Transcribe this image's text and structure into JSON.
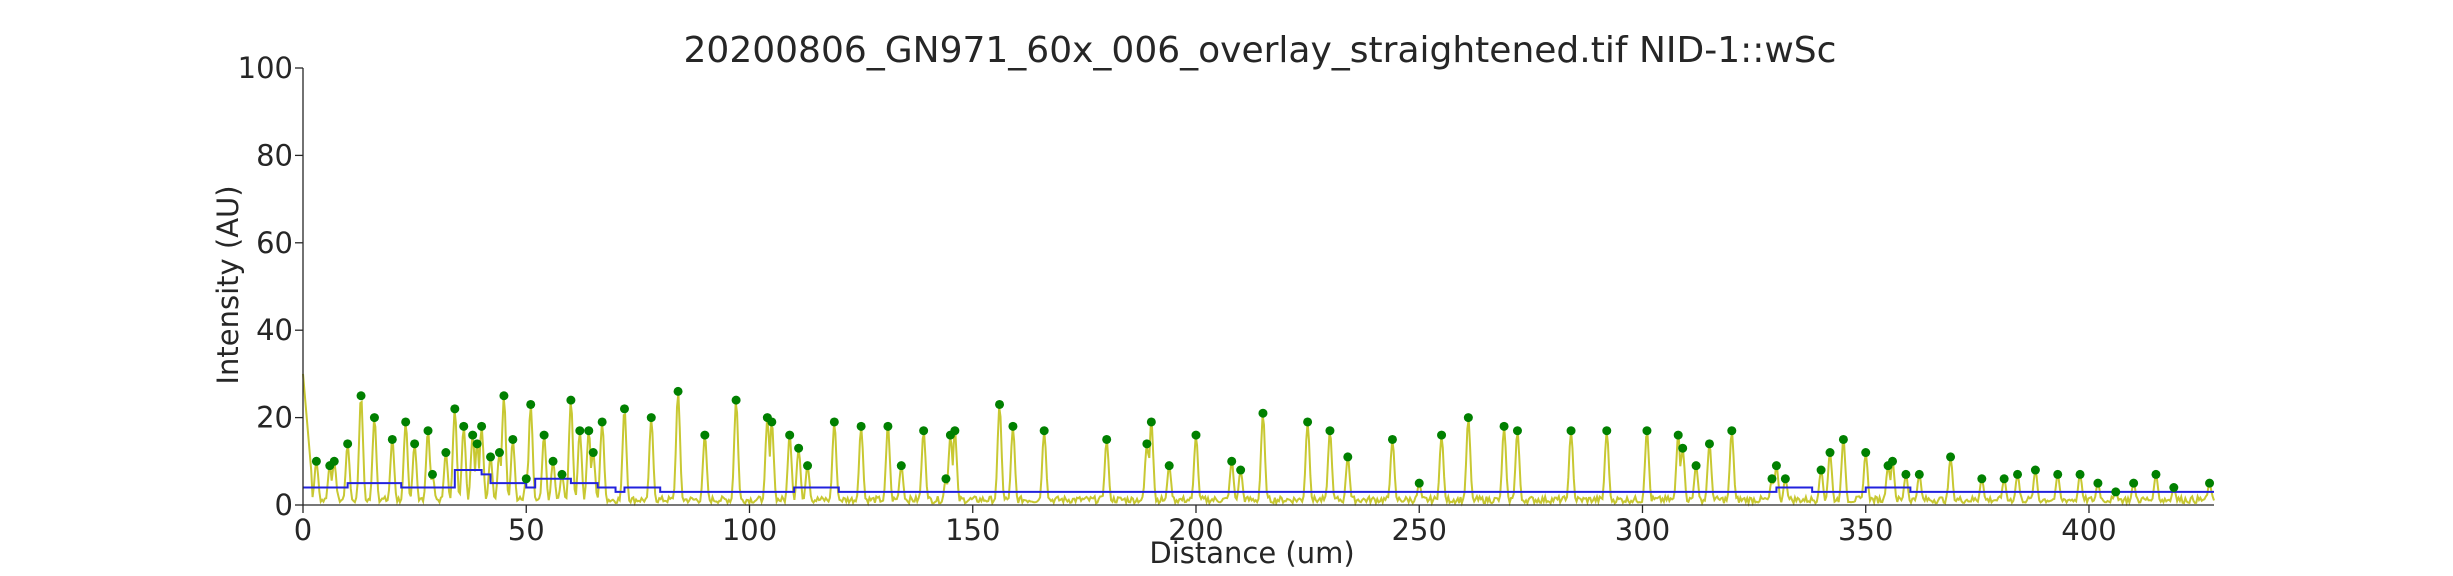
{
  "chart_data": {
    "type": "line",
    "title": "20200806_GN971_60x_006_overlay_straightened.tif NID-1::wSc",
    "xlabel": "Distance (um)",
    "ylabel": "Intensity (AU)",
    "xlim": [
      0,
      428
    ],
    "ylim": [
      0,
      100
    ],
    "xticks": [
      0,
      50,
      100,
      150,
      200,
      250,
      300,
      350,
      400
    ],
    "yticks": [
      0,
      20,
      40,
      60,
      80,
      100
    ],
    "grid": false,
    "colors": {
      "intensity": "#c8c832",
      "background": "#2222dd",
      "peaks": "#008000"
    },
    "series": [
      {
        "type": "line",
        "peak_widths": [
          4,
          2,
          2,
          2,
          3,
          3,
          3,
          3,
          3,
          3,
          3,
          3,
          3,
          3,
          3,
          3,
          3,
          3,
          3,
          3,
          3,
          3,
          3,
          3,
          3,
          3,
          3,
          3,
          3,
          3,
          3,
          3,
          3,
          3,
          3,
          3,
          3,
          3,
          3,
          3,
          3,
          3,
          3,
          3,
          3,
          3,
          3,
          3,
          3,
          3,
          3,
          3,
          3,
          3,
          3,
          3,
          3,
          3,
          3,
          3,
          3,
          3,
          3,
          3,
          3,
          3,
          3,
          3,
          3,
          3,
          3,
          3,
          3,
          3,
          3,
          3,
          3,
          3,
          3,
          3,
          3,
          3,
          3,
          3,
          3,
          3,
          3,
          3,
          3,
          3,
          3,
          3,
          3,
          3,
          3,
          3,
          3,
          3,
          3,
          3,
          3,
          3,
          3,
          3
        ]
      },
      {
        "type": "step",
        "x": [
          0,
          8,
          10,
          22,
          30,
          34,
          38,
          40,
          42,
          50,
          52,
          56,
          60,
          66,
          70,
          72,
          80,
          90,
          100,
          110,
          120,
          140,
          150,
          160,
          170,
          180,
          200,
          220,
          232,
          236,
          250,
          260,
          280,
          300,
          320,
          330,
          334,
          338,
          344,
          350,
          360,
          380,
          400,
          428
        ],
        "y": [
          4,
          4,
          5,
          4,
          4,
          8,
          8,
          7,
          5,
          4,
          6,
          6,
          5,
          4,
          3,
          4,
          3,
          3,
          3,
          4,
          3,
          3,
          3,
          3,
          3,
          3,
          3,
          3,
          3,
          3,
          3,
          3,
          3,
          3,
          3,
          4,
          4,
          3,
          3,
          4,
          3,
          3,
          3,
          3
        ]
      },
      {
        "type": "scatter",
        "x": [
          3,
          6,
          7,
          10,
          13,
          16,
          20,
          23,
          25,
          28,
          29,
          32,
          34,
          36,
          38,
          39,
          40,
          42,
          44,
          45,
          47,
          50,
          51,
          54,
          56,
          58,
          60,
          62,
          64,
          65,
          67,
          72,
          78,
          84,
          90,
          97,
          104,
          105,
          109,
          111,
          113,
          119,
          125,
          131,
          134,
          139,
          144,
          145,
          146,
          156,
          159,
          166,
          180,
          189,
          190,
          194,
          200,
          208,
          210,
          215,
          225,
          230,
          234,
          244,
          250,
          255,
          261,
          269,
          272,
          284,
          292,
          301,
          308,
          309,
          312,
          315,
          320,
          329,
          330,
          332,
          340,
          342,
          345,
          350,
          355,
          356,
          359,
          362,
          369,
          376,
          381,
          384,
          388,
          393,
          398,
          402,
          406,
          410,
          415,
          419,
          427
        ],
        "y": [
          10,
          9,
          10,
          14,
          25,
          20,
          15,
          19,
          14,
          17,
          7,
          12,
          22,
          18,
          16,
          14,
          18,
          11,
          12,
          25,
          15,
          6,
          23,
          16,
          10,
          7,
          24,
          17,
          17,
          12,
          19,
          22,
          20,
          26,
          16,
          24,
          20,
          19,
          16,
          13,
          9,
          19,
          18,
          18,
          9,
          17,
          6,
          16,
          17,
          23,
          18,
          17,
          15,
          14,
          19,
          9,
          16,
          10,
          8,
          21,
          19,
          17,
          11,
          15,
          5,
          16,
          20,
          18,
          17,
          17,
          17,
          17,
          16,
          13,
          9,
          14,
          17,
          6,
          9,
          6,
          8,
          12,
          15,
          12,
          9,
          10,
          7,
          7,
          11,
          6,
          6,
          7,
          8,
          7,
          7,
          5,
          3,
          5,
          7,
          4,
          5
        ]
      }
    ]
  }
}
